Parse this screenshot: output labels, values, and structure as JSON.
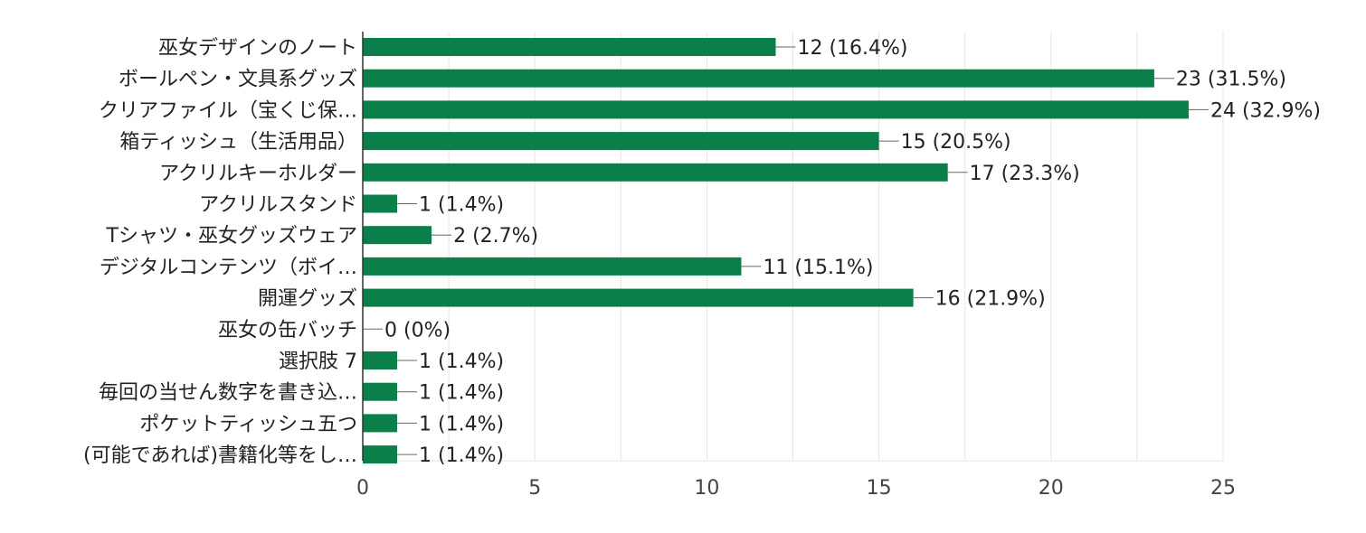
{
  "chart_data": {
    "type": "bar",
    "orientation": "horizontal",
    "categories": [
      "巫女デザインのノート",
      "ボールペン・文具系グッズ",
      "クリアファイル（宝くじ保…",
      "箱ティッシュ（生活用品）",
      "アクリルキーホルダー",
      "アクリルスタンド",
      "Tシャツ・巫女グッズウェア",
      "デジタルコンテンツ（ボイ…",
      "開運グッズ",
      "巫女の缶バッチ",
      "選択肢 7",
      "毎回の当せん数字を書き込…",
      "ポケットティッシュ五つ",
      "(可能であれば)書籍化等をし…"
    ],
    "values": [
      12,
      23,
      24,
      15,
      17,
      1,
      2,
      11,
      16,
      0,
      1,
      1,
      1,
      1
    ],
    "data_labels": [
      "12 (16.4%)",
      "23 (31.5%)",
      "24 (32.9%)",
      "15 (20.5%)",
      "17 (23.3%)",
      "1 (1.4%)",
      "2 (2.7%)",
      "11 (15.1%)",
      "16 (21.9%)",
      "0 (0%)",
      "1 (1.4%)",
      "1 (1.4%)",
      "1 (1.4%)",
      "1 (1.4%)"
    ],
    "xticks": [
      "0",
      "5",
      "10",
      "15",
      "20",
      "25"
    ],
    "xlim": [
      0,
      25
    ],
    "title": "",
    "xlabel": "",
    "ylabel": "",
    "grid": true,
    "bar_color": "#0b7f49"
  }
}
